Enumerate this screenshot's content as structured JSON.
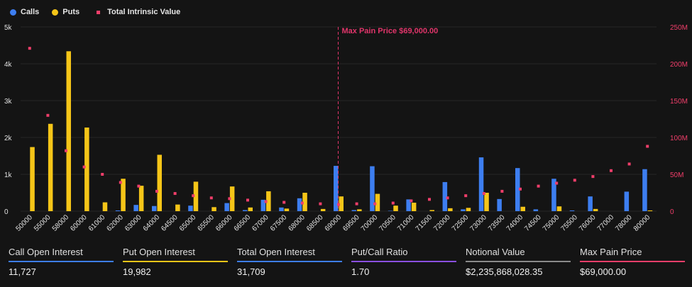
{
  "legend": {
    "calls_label": "Calls",
    "puts_label": "Puts",
    "intrinsic_label": "Total Intrinsic Value"
  },
  "colors": {
    "calls": "#3d7ef0",
    "puts": "#f5c518",
    "intrinsic": "#f03e6a",
    "marker_line": "#e0356a",
    "background": "#141414",
    "grid": "#262626"
  },
  "chart_data": {
    "type": "bar",
    "categories": [
      "50000",
      "55000",
      "58000",
      "60000",
      "61000",
      "62000",
      "63000",
      "64000",
      "64500",
      "65000",
      "65500",
      "66000",
      "66500",
      "67000",
      "67500",
      "68000",
      "68500",
      "69000",
      "69500",
      "70000",
      "70500",
      "71000",
      "71500",
      "72000",
      "72500",
      "73000",
      "73500",
      "74000",
      "74500",
      "75000",
      "75500",
      "76000",
      "77000",
      "78000",
      "80000"
    ],
    "series": [
      {
        "name": "Calls",
        "axis": "left",
        "values": [
          0,
          0,
          0,
          0,
          0,
          20,
          170,
          140,
          0,
          150,
          0,
          220,
          30,
          310,
          100,
          350,
          0,
          1230,
          30,
          1220,
          10,
          320,
          0,
          790,
          50,
          1460,
          330,
          1170,
          50,
          880,
          20,
          400,
          0,
          530,
          1140
        ]
      },
      {
        "name": "Puts",
        "axis": "left",
        "values": [
          1740,
          2370,
          4340,
          2270,
          240,
          880,
          690,
          1530,
          180,
          800,
          110,
          670,
          100,
          540,
          70,
          500,
          60,
          400,
          50,
          470,
          150,
          230,
          30,
          80,
          90,
          500,
          0,
          120,
          0,
          130,
          0,
          60,
          0,
          0,
          20
        ]
      },
      {
        "name": "Total Intrinsic Value",
        "axis": "right",
        "type": "scatter",
        "values": [
          221,
          130,
          82,
          60,
          50,
          39,
          34,
          27,
          24,
          21,
          18,
          17,
          15,
          13,
          12,
          11,
          10,
          9,
          10,
          10,
          11,
          14,
          16,
          18,
          21,
          24,
          27,
          30,
          34,
          38,
          42,
          47,
          55,
          64,
          88
        ]
      }
    ],
    "left_axis": {
      "ticks": [
        "0",
        "1k",
        "2k",
        "3k",
        "4k",
        "5k"
      ],
      "max": 5000
    },
    "right_axis": {
      "ticks": [
        "0",
        "50M",
        "100M",
        "150M",
        "200M",
        "250M"
      ],
      "max": 250
    },
    "marker": {
      "category": "69000",
      "label": "Max Pain Price $69,000.00"
    }
  },
  "stats": [
    {
      "label": "Call Open Interest",
      "value": "11,727",
      "color": "#3d7ef0"
    },
    {
      "label": "Put Open Interest",
      "value": "19,982",
      "color": "#f5c518"
    },
    {
      "label": "Total Open Interest",
      "value": "31,709",
      "color": "#3d7ef0"
    },
    {
      "label": "Put/Call Ratio",
      "value": "1.70",
      "color": "#8a4fe0"
    },
    {
      "label": "Notional Value",
      "value": "$2,235,868,028.35",
      "color": "#8a8a8a"
    },
    {
      "label": "Max Pain Price",
      "value": "$69,000.00",
      "color": "#f03e6a"
    }
  ]
}
